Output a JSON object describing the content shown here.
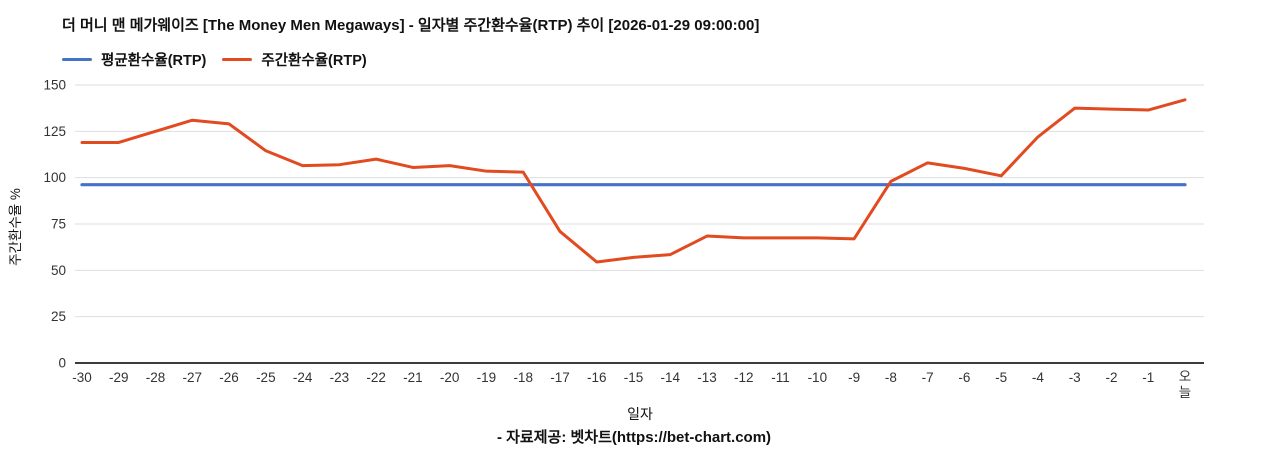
{
  "footer": {
    "text": "- 자료제공: 벳차트(https://bet-chart.com)"
  },
  "chart_data": {
    "type": "line",
    "title": "더 머니 맨 메가웨이즈 [The Money Men Megaways] - 일자별 주간환수율(RTP) 추이 [2026-01-29 09:00:00]",
    "xlabel": "일자",
    "ylabel": "주간환수율 %",
    "categories": [
      "-30",
      "-29",
      "-28",
      "-27",
      "-26",
      "-25",
      "-24",
      "-23",
      "-22",
      "-21",
      "-20",
      "-19",
      "-18",
      "-17",
      "-16",
      "-15",
      "-14",
      "-13",
      "-12",
      "-11",
      "-10",
      "-9",
      "-8",
      "-7",
      "-6",
      "-5",
      "-4",
      "-3",
      "-2",
      "-1",
      "오늘"
    ],
    "series": [
      {
        "name": "평균환수율(RTP)",
        "color": "#4472c7",
        "constant": 96.2,
        "stroke_width": 3.2
      },
      {
        "name": "주간환수율(RTP)",
        "color": "#e24a1f",
        "stroke_width": 3,
        "values": [
          119,
          119,
          125,
          131,
          129,
          114.5,
          106.5,
          107,
          110,
          105.5,
          106.5,
          103.5,
          103,
          71,
          54.5,
          57,
          58.5,
          68.5,
          67.5,
          67.5,
          67.5,
          67,
          98,
          108,
          105,
          101,
          122,
          137.5,
          137,
          136.5,
          142
        ]
      }
    ],
    "ylim": [
      0,
      150
    ],
    "yticks": [
      0,
      25,
      50,
      75,
      100,
      125,
      150
    ],
    "grid": true,
    "legend_position": "top-left",
    "colors": {
      "gridline": "#dedede",
      "axis_line": "#3c3c3c",
      "tick_text": "#333333"
    }
  }
}
